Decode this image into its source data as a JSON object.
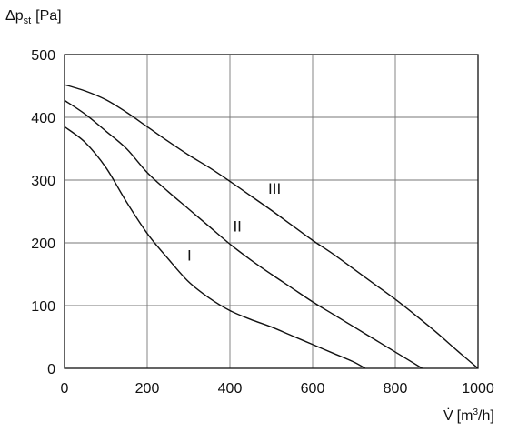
{
  "chart_data": {
    "type": "line",
    "xlabel_symbol": "V̇",
    "xlabel_unit_prefix": "[m",
    "xlabel_unit_sup": "3",
    "xlabel_unit_suffix": "/h]",
    "ylabel_symbol": "Δp",
    "ylabel_sub": "st",
    "ylabel_unit": "[Pa]",
    "xlim": [
      0,
      1000
    ],
    "ylim": [
      0,
      500
    ],
    "xticks": [
      "0",
      "200",
      "400",
      "600",
      "800",
      "1000"
    ],
    "yticks": [
      "0",
      "100",
      "200",
      "300",
      "400",
      "500"
    ],
    "grid": true,
    "series": [
      {
        "name": "I",
        "x": [
          0,
          50,
          100,
          150,
          200,
          250,
          300,
          350,
          400,
          450,
          500,
          550,
          600,
          650,
          700,
          727
        ],
        "y": [
          385,
          360,
          320,
          265,
          215,
          175,
          138,
          112,
          92,
          78,
          66,
          52,
          38,
          24,
          10,
          0
        ]
      },
      {
        "name": "II",
        "x": [
          0,
          50,
          100,
          150,
          200,
          250,
          300,
          350,
          400,
          450,
          500,
          550,
          600,
          650,
          700,
          750,
          800,
          865
        ],
        "y": [
          427,
          405,
          378,
          350,
          312,
          282,
          254,
          226,
          198,
          173,
          150,
          128,
          106,
          86,
          66,
          46,
          26,
          0
        ]
      },
      {
        "name": "III",
        "x": [
          0,
          50,
          100,
          150,
          200,
          250,
          300,
          350,
          400,
          450,
          500,
          550,
          600,
          650,
          700,
          750,
          800,
          850,
          900,
          950,
          1000
        ],
        "y": [
          452,
          442,
          428,
          408,
          385,
          362,
          340,
          320,
          298,
          275,
          252,
          228,
          204,
          182,
          158,
          134,
          110,
          84,
          57,
          28,
          0
        ]
      }
    ],
    "curve_labels": [
      {
        "text": "I",
        "x": 302,
        "y": 172
      },
      {
        "text": "II",
        "x": 418,
        "y": 218
      },
      {
        "text": "III",
        "x": 508,
        "y": 278
      }
    ]
  }
}
